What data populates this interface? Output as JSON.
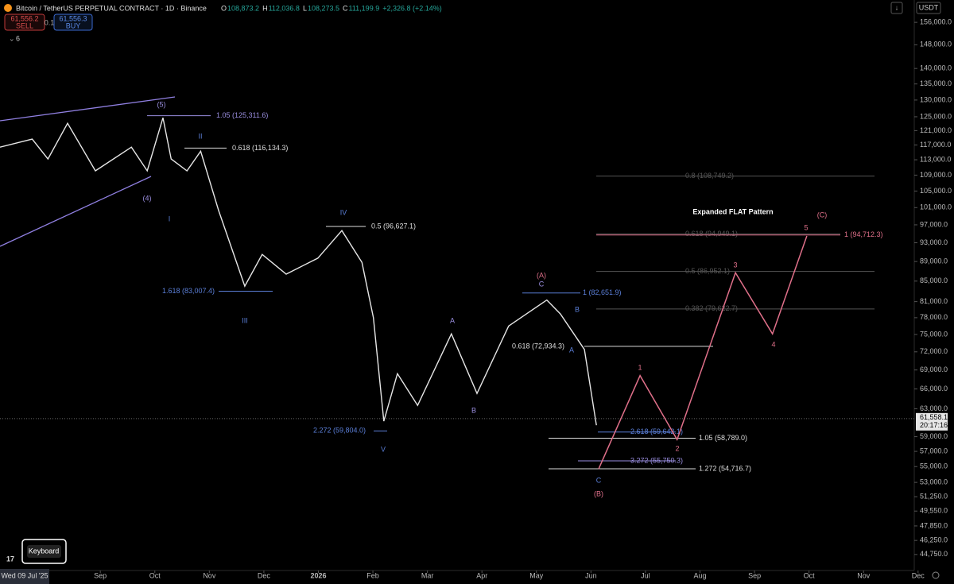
{
  "header": {
    "title": "Bitcoin / TetherUS PERPETUAL CONTRACT · 1D · Binance",
    "ohlc": [
      {
        "k": "O",
        "v": "108,873.2"
      },
      {
        "k": "H",
        "v": "112,036.8"
      },
      {
        "k": "L",
        "v": "108,273.5"
      },
      {
        "k": "C",
        "v": "111,199.9"
      }
    ],
    "change": "+2,326.8 (+2.14%)",
    "sell_price": "61,556.2",
    "sell": "SELL",
    "spread": "0.1",
    "buy_price": "61,556.3",
    "buy": "BUY",
    "indicators": "6",
    "currency": "USDT"
  },
  "chart_data": {
    "type": "line",
    "x": [
      -1.84,
      -1.25,
      -0.96,
      -0.6,
      -0.09,
      0.57,
      0.86,
      1.15,
      1.3,
      1.59,
      1.84,
      2.17,
      2.65,
      2.97,
      3.41,
      3.99,
      4.43,
      4.8,
      5.01,
      5.2,
      5.45,
      5.82,
      6.44,
      6.91,
      7.49,
      8.19,
      8.44,
      8.88,
      9.1
    ],
    "values": [
      116400,
      118600,
      113200,
      123100,
      110100,
      116400,
      110100,
      124700,
      113200,
      110100,
      115300,
      100300,
      84000,
      90500,
      86400,
      89700,
      95700,
      88800,
      78000,
      61200,
      68400,
      63500,
      75100,
      65300,
      76500,
      81300,
      78700,
      72400,
      60600
    ],
    "color": "#e6e6e6",
    "projection": {
      "x": [
        9.14,
        9.9,
        10.58,
        11.65,
        12.33,
        12.96
      ],
      "values": [
        54700,
        68100,
        58600,
        86700,
        75100,
        94500
      ],
      "color": "#e0708a"
    },
    "log_scale": true,
    "xlim": [
      -1.84,
      14.93
    ],
    "xticks": [
      {
        "value": 0,
        "label": "Sep"
      },
      {
        "value": 1,
        "label": "Oct"
      },
      {
        "value": 2,
        "label": "Nov"
      },
      {
        "value": 3,
        "label": "Dec"
      },
      {
        "value": 4,
        "label": "2026"
      },
      {
        "value": 5,
        "label": "Feb"
      },
      {
        "value": 6,
        "label": "Mar"
      },
      {
        "value": 7,
        "label": "Apr"
      },
      {
        "value": 8,
        "label": "May"
      },
      {
        "value": 9,
        "label": "Jun"
      },
      {
        "value": 10,
        "label": "Jul"
      },
      {
        "value": 11,
        "label": "Aug"
      },
      {
        "value": 12,
        "label": "Sep"
      },
      {
        "value": 13,
        "label": "Oct"
      },
      {
        "value": 14,
        "label": "Nov"
      },
      {
        "value": 15,
        "label": "Dec"
      }
    ],
    "ylim": [
      43100,
      164400
    ],
    "yticks": [
      {
        "value": 156000,
        "label": "156,000.0"
      },
      {
        "value": 148000,
        "label": "148,000.0"
      },
      {
        "value": 140000,
        "label": "140,000.0"
      },
      {
        "value": 135000,
        "label": "135,000.0"
      },
      {
        "value": 130000,
        "label": "130,000.0"
      },
      {
        "value": 125000,
        "label": "125,000.0"
      },
      {
        "value": 121000,
        "label": "121,000.0"
      },
      {
        "value": 117000,
        "label": "117,000.0"
      },
      {
        "value": 113000,
        "label": "113,000.0"
      },
      {
        "value": 109000,
        "label": "109,000.0"
      },
      {
        "value": 105000,
        "label": "105,000.0"
      },
      {
        "value": 101000,
        "label": "101,000.0"
      },
      {
        "value": 97000,
        "label": "97,000.0"
      },
      {
        "value": 93000,
        "label": "93,000.0"
      },
      {
        "value": 89000,
        "label": "89,000.0"
      },
      {
        "value": 85000,
        "label": "85,000.0"
      },
      {
        "value": 81000,
        "label": "81,000.0"
      },
      {
        "value": 78000,
        "label": "78,000.0"
      },
      {
        "value": 75000,
        "label": "75,000.0"
      },
      {
        "value": 72000,
        "label": "72,000.0"
      },
      {
        "value": 69000,
        "label": "69,000.0"
      },
      {
        "value": 66000,
        "label": "66,000.0"
      },
      {
        "value": 63000,
        "label": "63,000.0"
      },
      {
        "value": 59000,
        "label": "59,000.0"
      },
      {
        "value": 57000,
        "label": "57,000.0"
      },
      {
        "value": 55000,
        "label": "55,000.0"
      },
      {
        "value": 53000,
        "label": "53,000.0"
      },
      {
        "value": 51250,
        "label": "51,250.0"
      },
      {
        "value": 49550,
        "label": "49,550.0"
      },
      {
        "value": 47850,
        "label": "47,850.0"
      },
      {
        "value": 46250,
        "label": "46,250.0"
      },
      {
        "value": 44750,
        "label": "44,750.0"
      }
    ],
    "current_price": {
      "value": 61558.1,
      "label": "61,558.1"
    },
    "countdown": "20:17:16",
    "fib_levels": [
      {
        "label": "1.05 (125,311.6)",
        "value": 125311.6,
        "color": "#9a8ee0"
      },
      {
        "label": "0.618 (116,134.3)",
        "value": 116134.3,
        "color": "#dddddd"
      },
      {
        "label": "0.5 (96,627.1)",
        "value": 96627.1,
        "color": "#dddddd"
      },
      {
        "label": "1.618 (83,007.4)",
        "value": 83007.4,
        "color": "#5b7fd8"
      },
      {
        "label": "1 (82,651.9)",
        "value": 82651.9,
        "color": "#5b7fd8"
      },
      {
        "label": "0.618 (72,934.3)",
        "value": 72934.3,
        "color": "#dddddd"
      },
      {
        "label": "2.272 (59,804.0)",
        "value": 59804.0,
        "color": "#5b7fd8"
      },
      {
        "label": "2.618 (59,642.1)",
        "value": 59642.1,
        "color": "#5b7fd8"
      },
      {
        "label": "1.05 (58,789.0)",
        "value": 58789.0,
        "color": "#dddddd"
      },
      {
        "label": "3.272 (55,750.3)",
        "value": 55750.3,
        "color": "#9a8ee0"
      },
      {
        "label": "1.272 (54,716.7)",
        "value": 54716.7,
        "color": "#dddddd"
      },
      {
        "label": "0.8 (108,749.2)",
        "value": 108749.2,
        "color": "#555555"
      },
      {
        "label": "0.618 (94,949.1)",
        "value": 94949.1,
        "color": "#555555"
      },
      {
        "label": "1 (94,712.3)",
        "value": 94712.3,
        "color": "#e0708a"
      },
      {
        "label": "0.5 (86,952.1)",
        "value": 86952.1,
        "color": "#555555"
      },
      {
        "label": "0.382 (79,622.7)",
        "value": 79622.7,
        "color": "#555555"
      }
    ],
    "wave_labels": [
      {
        "text": "(5)",
        "color": "#9a8ee0"
      },
      {
        "text": "(4)",
        "color": "#9a8ee0"
      },
      {
        "text": "II",
        "color": "#5b7fd8"
      },
      {
        "text": "I",
        "color": "#5b7fd8"
      },
      {
        "text": "III",
        "color": "#5b7fd8"
      },
      {
        "text": "IV",
        "color": "#5b7fd8"
      },
      {
        "text": "V",
        "color": "#5b7fd8"
      },
      {
        "text": "A",
        "color": "#9a8ee0"
      },
      {
        "text": "B",
        "color": "#9a8ee0"
      },
      {
        "text": "(A)",
        "color": "#e0708a"
      },
      {
        "text": "C",
        "color": "#9a8ee0"
      },
      {
        "text": "B",
        "color": "#5b7fd8"
      },
      {
        "text": "A",
        "color": "#5b7fd8"
      },
      {
        "text": "C",
        "color": "#5b7fd8"
      },
      {
        "text": "(B)",
        "color": "#e0708a"
      },
      {
        "text": "1",
        "color": "#e0708a"
      },
      {
        "text": "2",
        "color": "#e0708a"
      },
      {
        "text": "3",
        "color": "#e0708a"
      },
      {
        "text": "4",
        "color": "#e0708a"
      },
      {
        "text": "5",
        "color": "#e0708a"
      },
      {
        "text": "(C)",
        "color": "#e0708a"
      }
    ],
    "pattern_title": "Expanded FLAT Pattern",
    "crosshair_date": "Wed 09 Jul '25"
  },
  "keyboard": "Keyboard"
}
